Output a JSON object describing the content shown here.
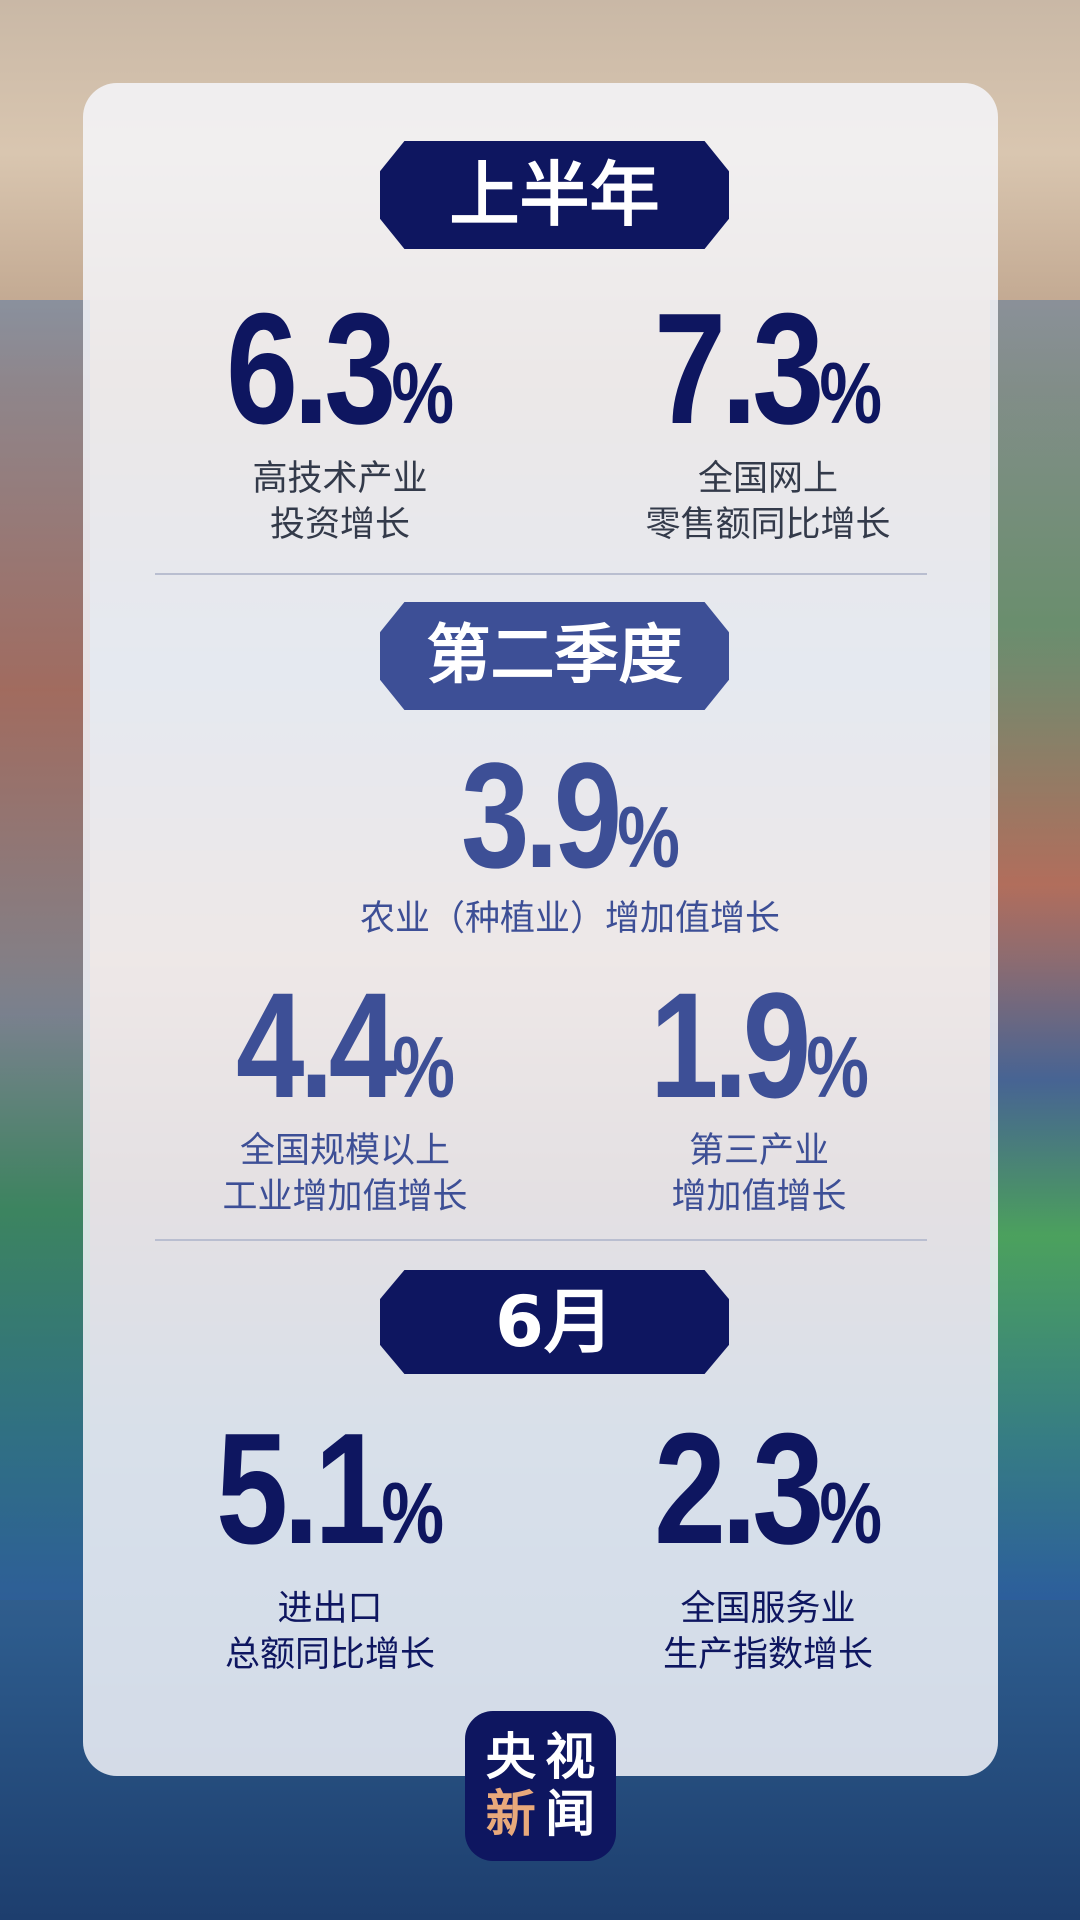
{
  "colors": {
    "navy": "#0e1660",
    "q2_blue": "#3d4f96",
    "label_gray": "#333a4a",
    "logo_orange": "#e8a97b"
  },
  "sections": [
    {
      "badge": "上半年",
      "stats": [
        {
          "value": "6.3",
          "unit": "%",
          "label": [
            "高技术产业",
            "投资增长"
          ]
        },
        {
          "value": "7.3",
          "unit": "%",
          "label": [
            "全国网上",
            "零售额同比增长"
          ]
        }
      ]
    },
    {
      "badge": "第二季度",
      "stats": [
        {
          "value": "3.9",
          "unit": "%",
          "label": [
            "农业（种植业）增加值增长"
          ]
        },
        {
          "value": "4.4",
          "unit": "%",
          "label": [
            "全国规模以上",
            "工业增加值增长"
          ]
        },
        {
          "value": "1.9",
          "unit": "%",
          "label": [
            "第三产业",
            "增加值增长"
          ]
        }
      ]
    },
    {
      "badge": "6月",
      "stats": [
        {
          "value": "5.1",
          "unit": "%",
          "label": [
            "进出口",
            "总额同比增长"
          ]
        },
        {
          "value": "2.3",
          "unit": "%",
          "label": [
            "全国服务业",
            "生产指数增长"
          ]
        }
      ]
    }
  ],
  "logo": {
    "chars": [
      "央",
      "视",
      "新",
      "闻"
    ]
  }
}
